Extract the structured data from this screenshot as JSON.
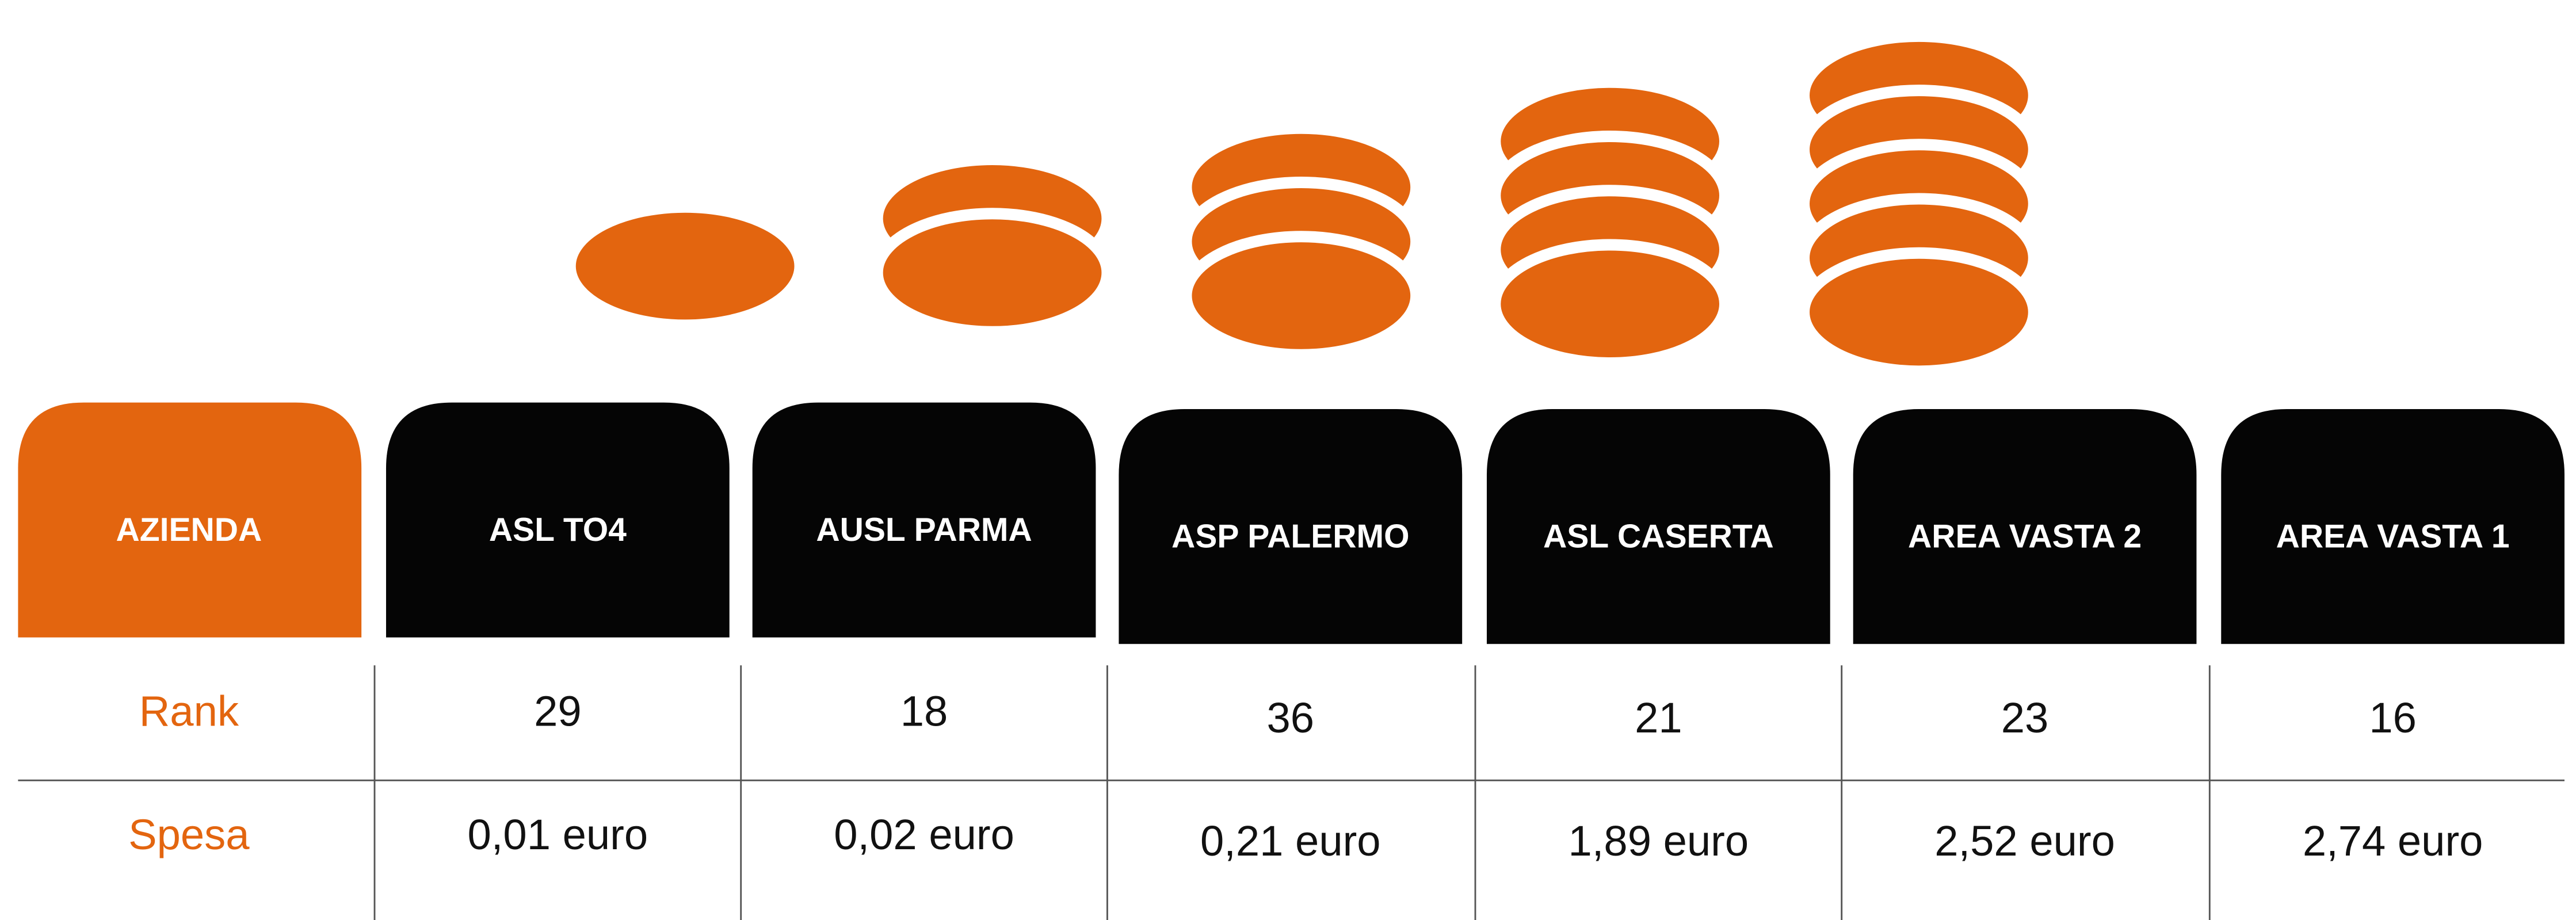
{
  "header": {
    "label": "AZIENDA"
  },
  "rows": {
    "rank": "Rank",
    "spesa": "Spesa"
  },
  "columns": [
    {
      "name": "ASL TO4",
      "rank": 29,
      "spesa": "0,01 euro"
    },
    {
      "name": "AUSL PARMA",
      "rank": 18,
      "spesa": "0,02 euro"
    },
    {
      "name": "ASP PALERMO",
      "rank": 36,
      "spesa": "0,21 euro"
    },
    {
      "name": "ASL CASERTA",
      "rank": 21,
      "spesa": "1,89 euro"
    },
    {
      "name": "AREA VASTA 2",
      "rank": 23,
      "spesa": "2,52 euro"
    },
    {
      "name": "AREA VASTA 1",
      "rank": 16,
      "spesa": "2,74 euro"
    }
  ]
}
